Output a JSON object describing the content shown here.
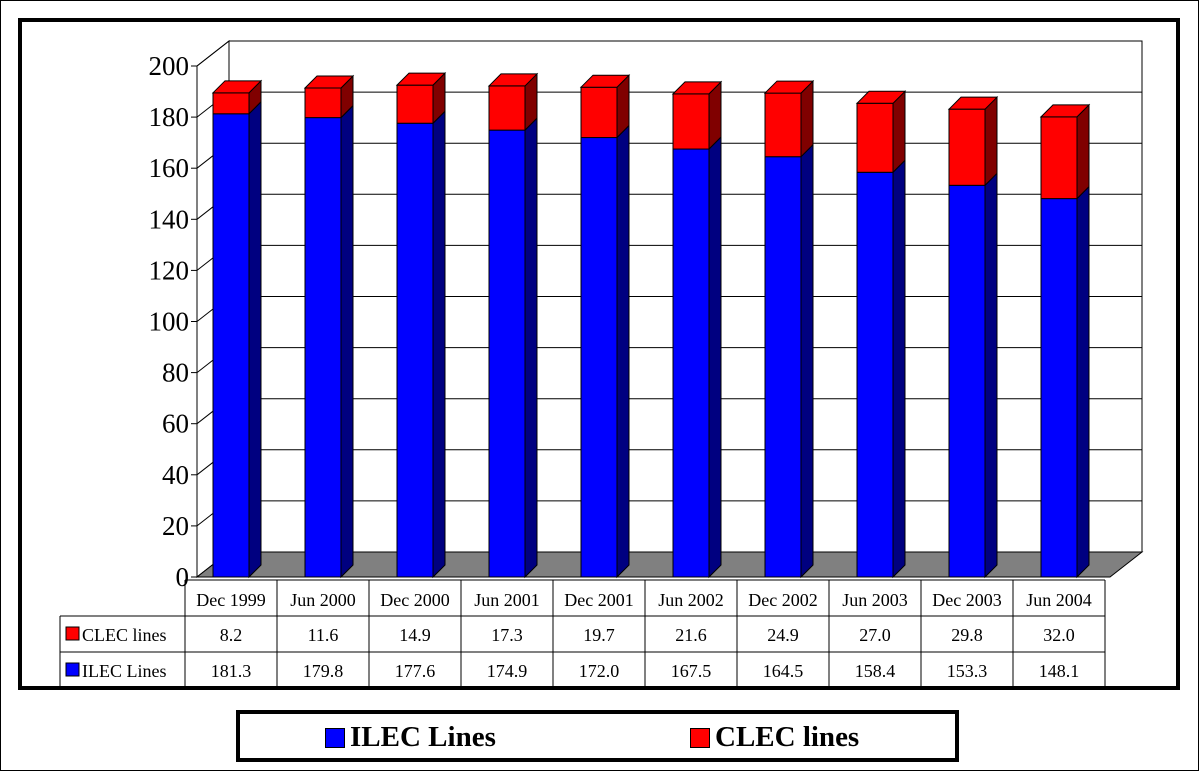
{
  "chart_data": {
    "type": "bar",
    "stacked": true,
    "three_d": true,
    "categories": [
      "Dec 1999",
      "Jun 2000",
      "Dec 2000",
      "Jun 2001",
      "Dec 2001",
      "Jun 2002",
      "Dec 2002",
      "Jun 2003",
      "Dec 2003",
      "Jun 2004"
    ],
    "series": [
      {
        "name": "ILEC Lines",
        "color": "#0000ff",
        "values": [
          181.3,
          179.8,
          177.6,
          174.9,
          172.0,
          167.5,
          164.5,
          158.4,
          153.3,
          148.1
        ]
      },
      {
        "name": "CLEC lines",
        "color": "#ff0000",
        "values": [
          8.2,
          11.6,
          14.9,
          17.3,
          19.7,
          21.6,
          24.9,
          27.0,
          29.8,
          32.0
        ]
      }
    ],
    "ylim": [
      0,
      200
    ],
    "yticks": [
      0,
      20,
      40,
      60,
      80,
      100,
      120,
      140,
      160,
      180,
      200
    ],
    "ytick_labels": [
      "0",
      "20",
      "40",
      "60",
      "80",
      "100",
      "120",
      "140",
      "160",
      "180",
      "200"
    ],
    "grid": true,
    "legend_position": "bottom",
    "data_table": {
      "rows": [
        {
          "label": "CLEC lines",
          "color": "#ff0000",
          "values": [
            "8.2",
            "11.6",
            "14.9",
            "17.3",
            "19.7",
            "21.6",
            "24.9",
            "27.0",
            "29.8",
            "32.0"
          ]
        },
        {
          "label": "ILEC Lines",
          "color": "#0000ff",
          "values": [
            "181.3",
            "179.8",
            "177.6",
            "174.9",
            "172.0",
            "167.5",
            "164.5",
            "158.4",
            "153.3",
            "148.1"
          ]
        }
      ]
    },
    "legend": [
      {
        "label": "ILEC Lines",
        "color": "#0000ff"
      },
      {
        "label": "CLEC lines",
        "color": "#ff0000"
      }
    ]
  }
}
